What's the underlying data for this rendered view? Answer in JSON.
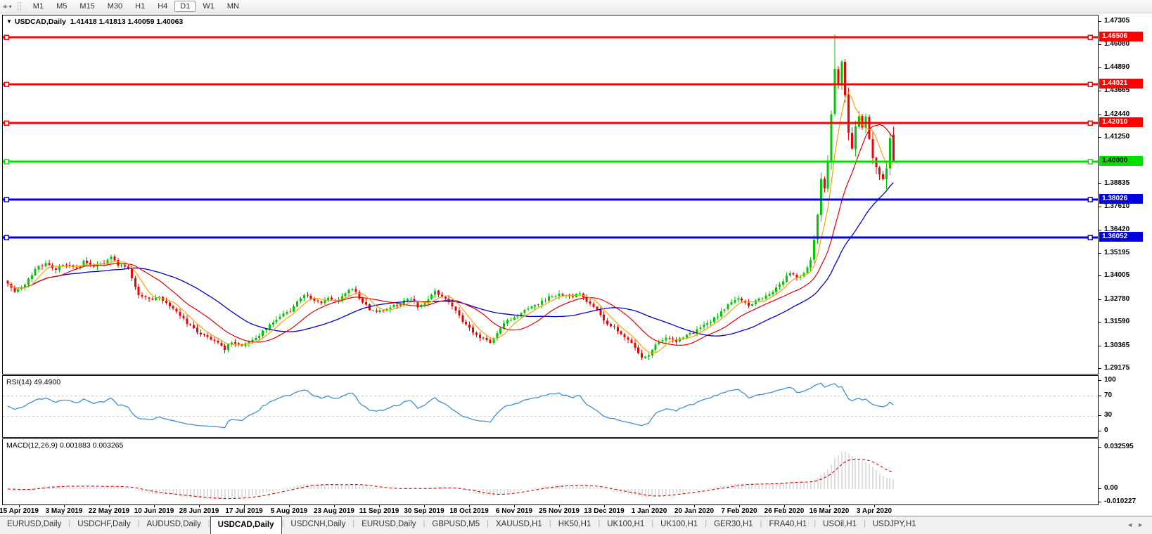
{
  "toolbar": {
    "icon_glyph": "⌖",
    "caret_glyph": "▾",
    "timeframes": [
      "M1",
      "M5",
      "M15",
      "M30",
      "H1",
      "H4",
      "D1",
      "W1",
      "MN"
    ],
    "active_timeframe": "D1"
  },
  "chart_title": {
    "collapse_icon": "▼",
    "symbol": "USDCAD,Daily",
    "ohlc": "1.41418 1.41813 1.40059 1.40063"
  },
  "indicators": {
    "rsi_label": "RSI(14) 49.4900",
    "macd_label": "MACD(12,26,9) 0.001883 0.003265"
  },
  "price_axis": {
    "ticks": [
      "1.47305",
      "1.46080",
      "1.44890",
      "1.43665",
      "1.42440",
      "1.41250",
      "1.38835",
      "1.37610",
      "1.36420",
      "1.35195",
      "1.34005",
      "1.32780",
      "1.31590",
      "1.30365",
      "1.29175"
    ],
    "level_chips": [
      {
        "label": "1.46506",
        "value": 1.46506,
        "bg": "#ff0000",
        "fg": "#ffffff"
      },
      {
        "label": "1.44021",
        "value": 1.44021,
        "bg": "#ff0000",
        "fg": "#ffffff"
      },
      {
        "label": "1.42010",
        "value": 1.4201,
        "bg": "#ff0000",
        "fg": "#ffffff"
      },
      {
        "label": "1.40000",
        "value": 1.4,
        "bg": "#00e000",
        "fg": "#000000"
      },
      {
        "label": "1.38026",
        "value": 1.38026,
        "bg": "#0000e0",
        "fg": "#ffffff"
      },
      {
        "label": "1.36052",
        "value": 1.36052,
        "bg": "#0000e0",
        "fg": "#ffffff"
      }
    ]
  },
  "rsi_axis": {
    "ticks": [
      {
        "label": "100",
        "value": 100
      },
      {
        "label": "70",
        "value": 70
      },
      {
        "label": "30",
        "value": 30
      },
      {
        "label": "0",
        "value": 0
      }
    ],
    "dashed_levels": [
      70,
      30
    ]
  },
  "macd_axis": {
    "ticks": [
      {
        "label": "0.032595",
        "value": 0.032595
      },
      {
        "label": "0.00",
        "value": 0
      },
      {
        "label": "-0.010227",
        "value": -0.010227
      }
    ]
  },
  "date_axis": [
    "15 Apr 2019",
    "3 May 2019",
    "22 May 2019",
    "10 Jun 2019",
    "28 Jun 2019",
    "17 Jul 2019",
    "5 Aug 2019",
    "23 Aug 2019",
    "11 Sep 2019",
    "30 Sep 2019",
    "18 Oct 2019",
    "6 Nov 2019",
    "25 Nov 2019",
    "13 Dec 2019",
    "1 Jan 2020",
    "20 Jan 2020",
    "7 Feb 2020",
    "26 Feb 2020",
    "16 Mar 2020",
    "3 Apr 2020"
  ],
  "tabs": {
    "items": [
      "EURUSD,Daily",
      "USDCHF,Daily",
      "AUDUSD,Daily",
      "USDCAD,Daily",
      "USDCNH,Daily",
      "EURUSD,Daily",
      "GBPUSD,M5",
      "XAUUSD,H1",
      "HK50,H1",
      "UK100,H1",
      "UK100,H1",
      "GER30,H1",
      "FRA40,H1",
      "USOil,H1",
      "USDJPY,H1"
    ],
    "active_index": 3,
    "left_arrow": "◄",
    "right_arrow": "►"
  },
  "chart_data": {
    "type": "candlestick",
    "symbol": "USDCAD",
    "timeframe": "Daily",
    "price_axis_range": [
      1.2892,
      1.47634
    ],
    "last_candle": {
      "o": 1.41418,
      "h": 1.41813,
      "l": 1.40059,
      "c": 1.40063
    },
    "h_lines": [
      {
        "price": 1.46506,
        "color": "#ff0000"
      },
      {
        "price": 1.44021,
        "color": "#ff0000"
      },
      {
        "price": 1.4201,
        "color": "#ff0000"
      },
      {
        "price": 1.4,
        "color": "#00dd00"
      },
      {
        "price": 1.38026,
        "color": "#0000e0"
      },
      {
        "price": 1.36052,
        "color": "#0000e0"
      }
    ],
    "bars": 258,
    "peak": {
      "index": 240,
      "high": 1.4665
    },
    "deep_low": {
      "index": 255,
      "low": 1.3855
    },
    "close_keypoints": [
      [
        0,
        1.336
      ],
      [
        2,
        1.332
      ],
      [
        5,
        1.3355
      ],
      [
        8,
        1.344
      ],
      [
        11,
        1.347
      ],
      [
        14,
        1.344
      ],
      [
        17,
        1.3465
      ],
      [
        20,
        1.344
      ],
      [
        22,
        1.348
      ],
      [
        25,
        1.345
      ],
      [
        28,
        1.347
      ],
      [
        30,
        1.35
      ],
      [
        32,
        1.346
      ],
      [
        35,
        1.344
      ],
      [
        38,
        1.33
      ],
      [
        41,
        1.328
      ],
      [
        44,
        1.329
      ],
      [
        46,
        1.326
      ],
      [
        49,
        1.322
      ],
      [
        52,
        1.316
      ],
      [
        55,
        1.311
      ],
      [
        58,
        1.308
      ],
      [
        61,
        1.305
      ],
      [
        63,
        1.302
      ],
      [
        65,
        1.306
      ],
      [
        67,
        1.304
      ],
      [
        69,
        1.305
      ],
      [
        72,
        1.308
      ],
      [
        75,
        1.313
      ],
      [
        78,
        1.318
      ],
      [
        80,
        1.321
      ],
      [
        82,
        1.3215
      ],
      [
        84,
        1.327
      ],
      [
        86,
        1.331
      ],
      [
        88,
        1.328
      ],
      [
        91,
        1.326
      ],
      [
        93,
        1.329
      ],
      [
        95,
        1.327
      ],
      [
        98,
        1.331
      ],
      [
        100,
        1.334
      ],
      [
        102,
        1.329
      ],
      [
        105,
        1.323
      ],
      [
        108,
        1.322
      ],
      [
        111,
        1.324
      ],
      [
        114,
        1.326
      ],
      [
        117,
        1.329
      ],
      [
        119,
        1.324
      ],
      [
        121,
        1.326
      ],
      [
        124,
        1.332
      ],
      [
        127,
        1.328
      ],
      [
        130,
        1.322
      ],
      [
        132,
        1.316
      ],
      [
        134,
        1.313
      ],
      [
        137,
        1.308
      ],
      [
        140,
        1.306
      ],
      [
        142,
        1.31
      ],
      [
        144,
        1.316
      ],
      [
        147,
        1.318
      ],
      [
        150,
        1.323
      ],
      [
        153,
        1.325
      ],
      [
        156,
        1.328
      ],
      [
        158,
        1.33
      ],
      [
        160,
        1.331
      ],
      [
        163,
        1.329
      ],
      [
        166,
        1.331
      ],
      [
        168,
        1.327
      ],
      [
        171,
        1.322
      ],
      [
        173,
        1.317
      ],
      [
        176,
        1.313
      ],
      [
        179,
        1.308
      ],
      [
        182,
        1.303
      ],
      [
        184,
        1.298
      ],
      [
        186,
        1.299
      ],
      [
        188,
        1.305
      ],
      [
        191,
        1.308
      ],
      [
        194,
        1.306
      ],
      [
        197,
        1.31
      ],
      [
        199,
        1.311
      ],
      [
        202,
        1.315
      ],
      [
        205,
        1.318
      ],
      [
        208,
        1.323
      ],
      [
        210,
        1.327
      ],
      [
        212,
        1.329
      ],
      [
        215,
        1.325
      ],
      [
        218,
        1.328
      ],
      [
        221,
        1.331
      ],
      [
        223,
        1.334
      ],
      [
        225,
        1.338
      ],
      [
        227,
        1.342
      ],
      [
        229,
        1.339
      ],
      [
        231,
        1.342
      ],
      [
        233,
        1.348
      ],
      [
        234,
        1.358
      ],
      [
        235,
        1.372
      ],
      [
        236,
        1.392
      ],
      [
        237,
        1.385
      ],
      [
        238,
        1.4
      ],
      [
        239,
        1.425
      ],
      [
        240,
        1.448
      ],
      [
        241,
        1.442
      ],
      [
        242,
        1.454
      ],
      [
        243,
        1.435
      ],
      [
        244,
        1.415
      ],
      [
        245,
        1.405
      ],
      [
        246,
        1.418
      ],
      [
        247,
        1.424
      ],
      [
        248,
        1.416
      ],
      [
        249,
        1.423
      ],
      [
        250,
        1.412
      ],
      [
        251,
        1.403
      ],
      [
        252,
        1.398
      ],
      [
        253,
        1.395
      ],
      [
        254,
        1.392
      ],
      [
        255,
        1.398
      ],
      [
        256,
        1.414
      ],
      [
        257,
        1.40063
      ]
    ],
    "ma_periods": {
      "fast": 6,
      "mid": 16,
      "slow": 34
    },
    "rsi_period": 14,
    "macd_params": [
      12,
      26,
      9
    ],
    "colors": {
      "up": "#00c800",
      "down": "#f20000",
      "ma_fast": "#ffa000",
      "ma_mid": "#e00000",
      "ma_slow": "#0000cc",
      "rsi": "#3f8fd4",
      "rsi_level": "#c8c8c8",
      "macd_hist": "#bcbcbc",
      "macd_signal": "#e00000"
    }
  }
}
